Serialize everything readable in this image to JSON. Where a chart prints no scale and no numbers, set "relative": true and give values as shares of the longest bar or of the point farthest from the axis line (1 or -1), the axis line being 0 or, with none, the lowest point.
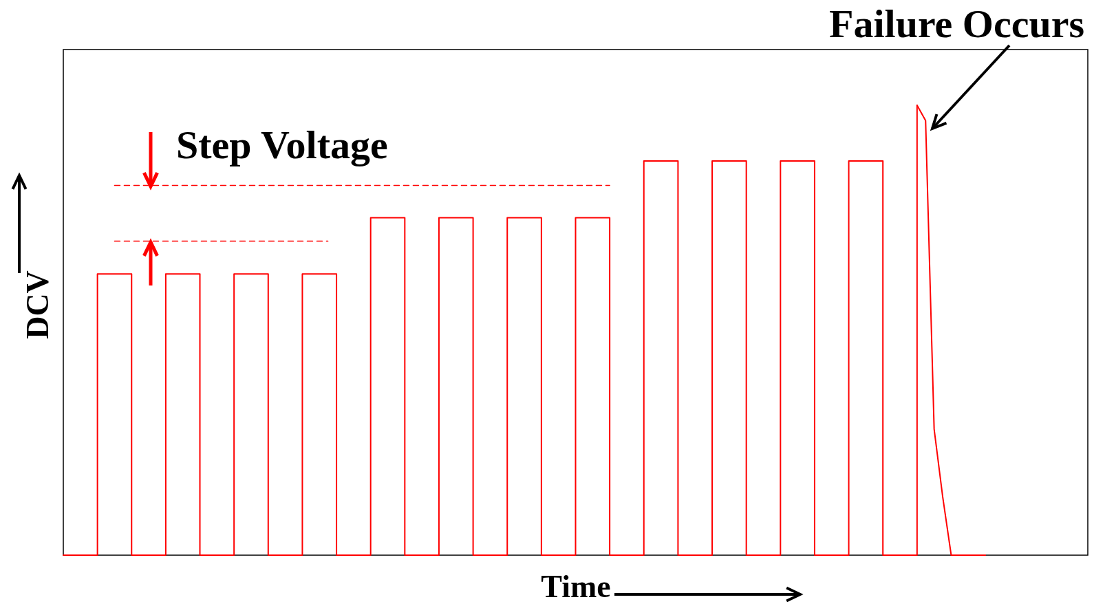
{
  "chart_data": {
    "type": "line",
    "xlabel": "Time",
    "ylabel": "DCV",
    "relative": true,
    "categories": [
      null,
      null,
      null,
      null,
      null,
      null,
      null,
      null,
      null,
      null,
      null,
      null,
      null,
      null,
      null,
      null,
      null,
      null,
      null,
      null,
      null,
      null,
      null,
      null,
      null,
      null,
      null,
      null,
      null,
      null,
      null,
      null,
      null,
      null,
      null,
      null,
      null,
      null,
      null,
      null,
      null,
      null,
      null,
      null,
      null,
      null,
      null,
      null,
      null,
      null,
      null,
      null,
      null,
      null,
      null,
      null,
      null,
      null,
      null,
      null,
      null,
      null,
      null,
      null,
      null,
      null,
      null,
      null,
      null,
      null,
      null,
      null,
      null,
      null,
      null,
      null,
      null,
      null,
      null,
      null,
      null,
      null,
      null,
      null,
      null,
      null,
      null,
      null,
      null,
      null,
      null,
      null,
      null,
      null,
      null,
      null,
      null,
      null,
      null,
      null,
      null,
      null,
      null,
      null,
      null,
      null,
      null,
      null,
      null,
      null,
      null,
      null,
      null,
      null,
      null,
      null,
      null,
      null,
      null,
      null,
      null
    ],
    "annotations": [
      "Step Voltage",
      "Failure Occurs"
    ],
    "series": [
      {
        "type": "step",
        "color": "#ff0000",
        "line_style": "solid",
        "values": [
          0,
          0,
          0,
          0,
          0.625,
          0.625,
          0.625,
          0.625,
          0,
          0,
          0,
          0,
          0.625,
          0.625,
          0.625,
          0.625,
          0,
          0,
          0,
          0,
          0.625,
          0.625,
          0.625,
          0.625,
          0,
          0,
          0,
          0,
          0.625,
          0.625,
          0.625,
          0.625,
          0,
          0,
          0,
          0,
          0.75,
          0.75,
          0.75,
          0.75,
          0,
          0,
          0,
          0,
          0.75,
          0.75,
          0.75,
          0.75,
          0,
          0,
          0,
          0,
          0.75,
          0.75,
          0.75,
          0.75,
          0,
          0,
          0,
          0,
          0.75,
          0.75,
          0.75,
          0.75,
          0,
          0,
          0,
          0,
          0.876,
          0.876,
          0.876,
          0.876,
          0,
          0,
          0,
          0,
          0.876,
          0.876,
          0.876,
          0.876,
          0,
          0,
          0,
          0,
          0.876,
          0.876,
          0.876,
          0.876,
          0,
          0,
          0,
          0,
          0.876,
          0.876,
          0.876,
          0.876,
          0,
          0,
          0,
          0,
          1,
          null,
          null,
          null,
          null,
          null,
          null,
          null,
          null,
          null,
          null,
          null,
          null,
          null,
          null,
          null,
          null,
          null,
          null,
          null,
          null
        ]
      },
      {
        "color": "#ff0000",
        "line_style": "solid",
        "values": [
          null,
          null,
          null,
          null,
          null,
          null,
          null,
          null,
          null,
          null,
          null,
          null,
          null,
          null,
          null,
          null,
          null,
          null,
          null,
          null,
          null,
          null,
          null,
          null,
          null,
          null,
          null,
          null,
          null,
          null,
          null,
          null,
          null,
          null,
          null,
          null,
          null,
          null,
          null,
          null,
          null,
          null,
          null,
          null,
          null,
          null,
          null,
          null,
          null,
          null,
          null,
          null,
          null,
          null,
          null,
          null,
          null,
          null,
          null,
          null,
          null,
          null,
          null,
          null,
          null,
          null,
          null,
          null,
          null,
          null,
          null,
          null,
          null,
          null,
          null,
          null,
          null,
          null,
          null,
          null,
          null,
          null,
          null,
          null,
          null,
          null,
          null,
          null,
          null,
          null,
          null,
          null,
          null,
          null,
          null,
          null,
          null,
          null,
          null,
          null,
          1,
          0.966,
          0.28,
          0.13,
          0,
          0,
          0,
          0,
          0,
          null,
          null,
          null,
          null,
          null,
          null,
          null,
          null,
          null,
          null,
          null,
          null
        ]
      },
      {
        "color": "#ff0000",
        "line_style": "dashed",
        "values": [
          null,
          null,
          null,
          null,
          null,
          null,
          0.822,
          0.822,
          0.822,
          0.822,
          0.822,
          0.822,
          0.822,
          0.822,
          0.822,
          0.822,
          0.822,
          0.822,
          0.822,
          0.822,
          0.822,
          0.822,
          0.822,
          0.822,
          0.822,
          0.822,
          0.822,
          0.822,
          0.822,
          0.822,
          0.822,
          0.822,
          0.822,
          0.822,
          0.822,
          0.822,
          0.822,
          0.822,
          0.822,
          0.822,
          0.822,
          0.822,
          0.822,
          0.822,
          0.822,
          0.822,
          0.822,
          0.822,
          0.822,
          0.822,
          0.822,
          0.822,
          0.822,
          0.822,
          0.822,
          0.822,
          0.822,
          0.822,
          0.822,
          0.822,
          0.822,
          0.822,
          0.822,
          0.822,
          0.822,
          null,
          null,
          null,
          null,
          null,
          null,
          null,
          null,
          null,
          null,
          null,
          null,
          null,
          null,
          null,
          null,
          null,
          null,
          null,
          null,
          null,
          null,
          null,
          null,
          null,
          null,
          null,
          null,
          null,
          null,
          null,
          null,
          null,
          null,
          null,
          null,
          null,
          null,
          null,
          null,
          null,
          null,
          null,
          null,
          null,
          null,
          null,
          null,
          null,
          null,
          null,
          null,
          null,
          null,
          null,
          null
        ]
      },
      {
        "color": "#ff0000",
        "line_style": "dashed",
        "values": [
          null,
          null,
          null,
          null,
          null,
          null,
          0.698,
          0.698,
          0.698,
          0.698,
          0.698,
          0.698,
          0.698,
          0.698,
          0.698,
          0.698,
          0.698,
          0.698,
          0.698,
          0.698,
          0.698,
          0.698,
          0.698,
          0.698,
          0.698,
          0.698,
          0.698,
          0.698,
          0.698,
          0.698,
          0.698,
          0.698,
          null,
          null,
          null,
          null,
          null,
          null,
          null,
          null,
          null,
          null,
          null,
          null,
          null,
          null,
          null,
          null,
          null,
          null,
          null,
          null,
          null,
          null,
          null,
          null,
          null,
          null,
          null,
          null,
          null,
          null,
          null,
          null,
          null,
          null,
          null,
          null,
          null,
          null,
          null,
          null,
          null,
          null,
          null,
          null,
          null,
          null,
          null,
          null,
          null,
          null,
          null,
          null,
          null,
          null,
          null,
          null,
          null,
          null,
          null,
          null,
          null,
          null,
          null,
          null,
          null,
          null,
          null,
          null,
          null,
          null,
          null,
          null,
          null,
          null,
          null,
          null,
          null,
          null,
          null,
          null,
          null,
          null,
          null,
          null,
          null,
          null,
          null,
          null,
          null
        ]
      }
    ]
  }
}
